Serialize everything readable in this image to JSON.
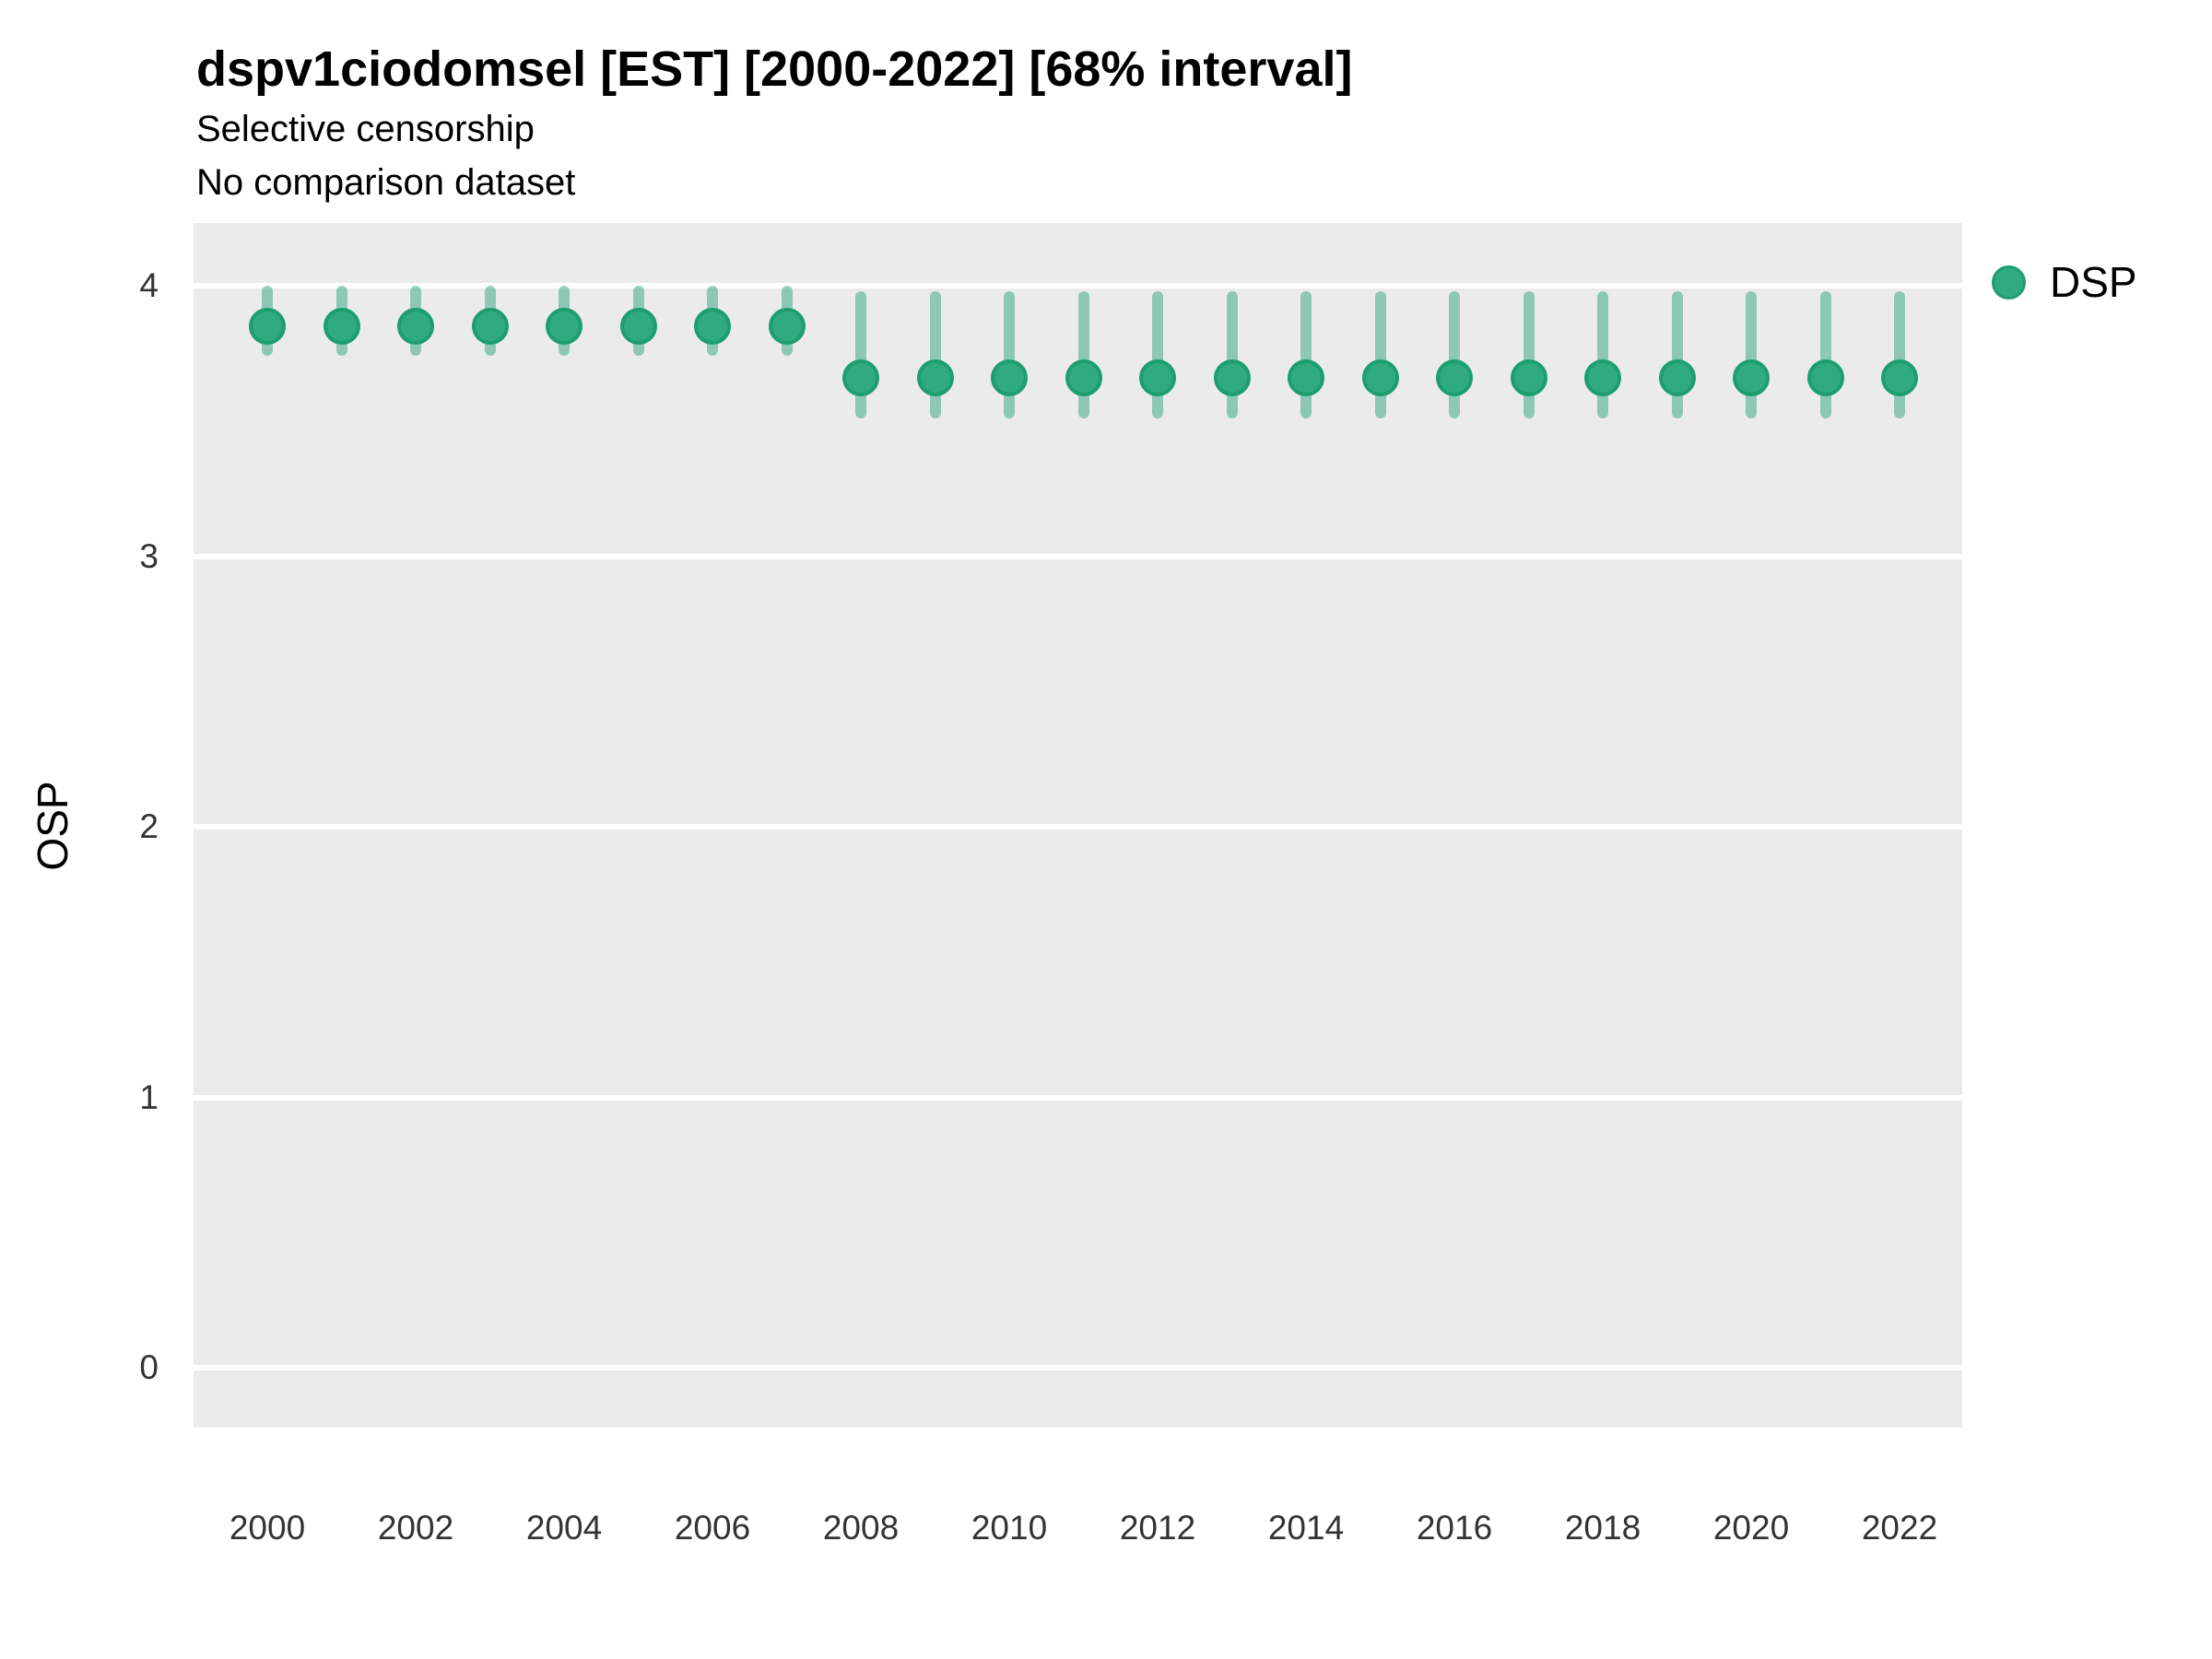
{
  "title": "dspv1ciodomsel [EST] [2000-2022] [68% interval]",
  "subtitle1": "Selective censorship",
  "subtitle2": "No comparison dataset",
  "ylabel": "OSP",
  "legend": {
    "label": "DSP"
  },
  "colors": {
    "point_fill": "#30ab81",
    "point_stroke": "#1d9e6f",
    "interval": "#1b9e77",
    "panel_bg": "#ebebeb",
    "gridline": "#ffffff",
    "tick_text": "#333333"
  },
  "chart_data": {
    "type": "scatter",
    "title": "dspv1ciodomsel [EST] [2000-2022] [68% interval]",
    "subtitle": "Selective censorship / No comparison dataset",
    "xlabel": "",
    "ylabel": "OSP",
    "interval_level": "68%",
    "legend_position": "right-top",
    "grid": "major-horizontal",
    "ylim": [
      -0.21,
      4.24
    ],
    "yticks": [
      0,
      1,
      2,
      3,
      4
    ],
    "xticks": [
      2000,
      2002,
      2004,
      2006,
      2008,
      2010,
      2012,
      2014,
      2016,
      2018,
      2020,
      2022
    ],
    "series": [
      {
        "name": "DSP",
        "x": [
          2000,
          2001,
          2002,
          2003,
          2004,
          2005,
          2006,
          2007,
          2008,
          2009,
          2010,
          2011,
          2012,
          2013,
          2014,
          2015,
          2016,
          2017,
          2018,
          2019,
          2020,
          2021,
          2022
        ],
        "y": [
          3.85,
          3.85,
          3.85,
          3.85,
          3.85,
          3.85,
          3.85,
          3.85,
          3.66,
          3.66,
          3.66,
          3.66,
          3.66,
          3.66,
          3.66,
          3.66,
          3.66,
          3.66,
          3.66,
          3.66,
          3.66,
          3.66,
          3.66
        ],
        "lo": [
          3.74,
          3.74,
          3.74,
          3.74,
          3.74,
          3.74,
          3.74,
          3.74,
          3.51,
          3.51,
          3.51,
          3.51,
          3.51,
          3.51,
          3.51,
          3.51,
          3.51,
          3.51,
          3.51,
          3.51,
          3.51,
          3.51,
          3.51
        ],
        "hi": [
          4.0,
          4.0,
          4.0,
          4.0,
          4.0,
          4.0,
          4.0,
          4.0,
          3.98,
          3.98,
          3.98,
          3.98,
          3.98,
          3.98,
          3.98,
          3.98,
          3.98,
          3.98,
          3.98,
          3.98,
          3.98,
          3.98,
          3.98
        ]
      }
    ]
  }
}
